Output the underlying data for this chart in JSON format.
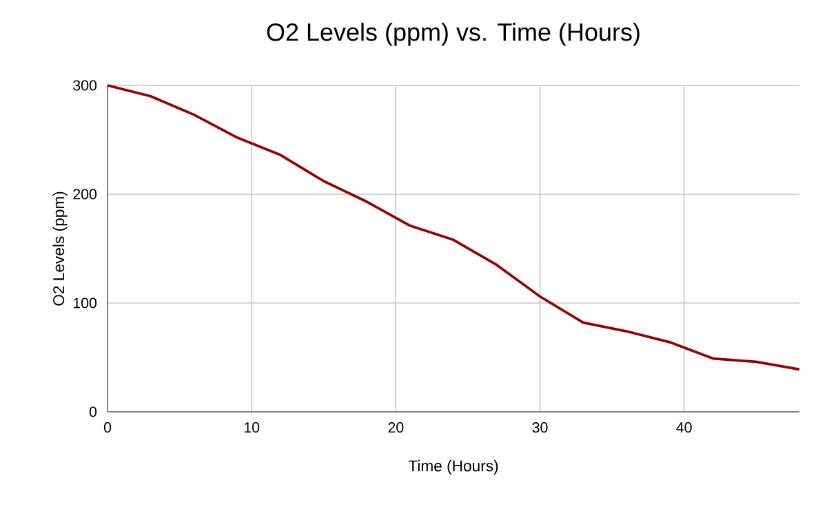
{
  "chart_data": {
    "type": "line",
    "title": "O2 Levels (ppm) vs. Time (Hours)",
    "xlabel": "Time (Hours)",
    "ylabel": "O2 Levels (ppm)",
    "x": [
      0,
      3,
      6,
      9,
      12,
      15,
      18,
      21,
      24,
      27,
      30,
      33,
      36,
      39,
      42,
      45,
      48
    ],
    "series": [
      {
        "color": "#990000",
        "values": [
          300,
          290,
          273,
          252,
          236,
          212,
          193,
          171,
          158,
          135,
          106,
          82,
          74,
          64,
          49,
          46,
          39
        ]
      }
    ],
    "xlim": [
      0,
      48
    ],
    "ylim": [
      0,
      300
    ],
    "xticks": [
      0,
      10,
      20,
      30,
      40
    ],
    "yticks": [
      0,
      100,
      200,
      300
    ],
    "grid": true,
    "marker": "none",
    "line_style": "solid"
  }
}
